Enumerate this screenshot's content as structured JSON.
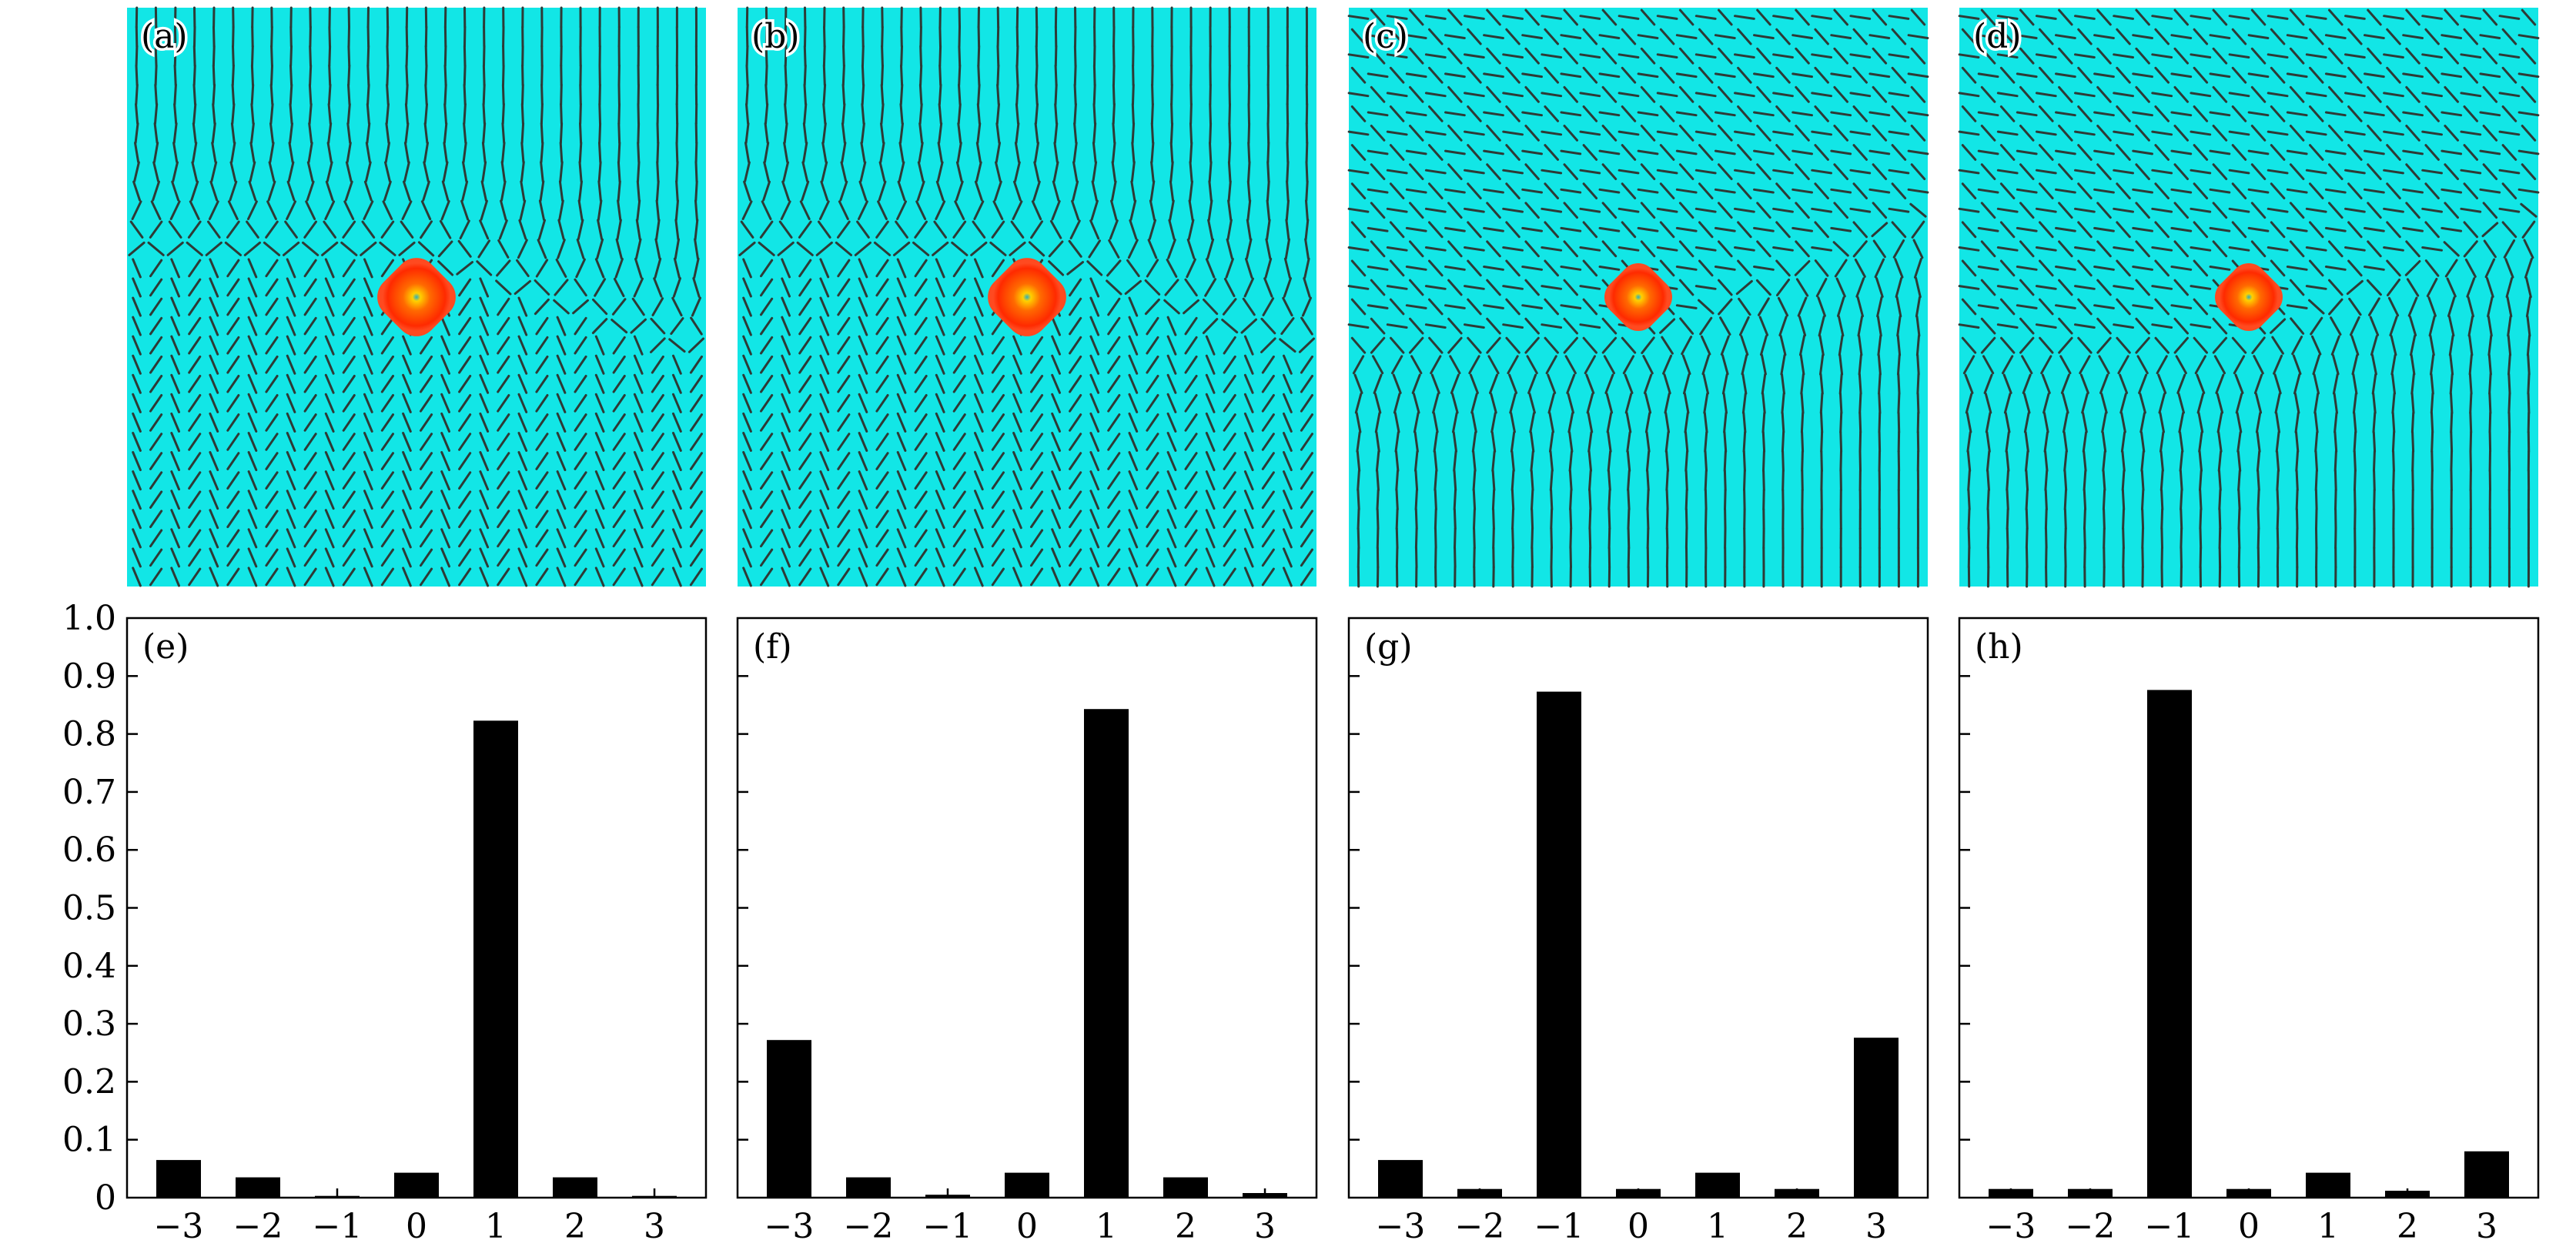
{
  "spin_panels": [
    {
      "label": "(a)"
    },
    {
      "label": "(b)"
    },
    {
      "label": "(c)"
    },
    {
      "label": "(d)"
    }
  ],
  "colors": {
    "background": "#12e6e6",
    "arrow": "#2e3a36",
    "skyrmion_outer": "#ff2a00",
    "skyrmion_mid": "#ff6a00",
    "skyrmion_core": "#ffd000",
    "skyrmion_center": "#2ab0c0",
    "bar": "#000000"
  },
  "chart_data": [
    {
      "type": "bar",
      "label": "(e)",
      "categories": [
        "−3",
        "−2",
        "−1",
        "0",
        "1",
        "2",
        "3"
      ],
      "values": [
        0.065,
        0.035,
        0.003,
        0.043,
        0.823,
        0.035,
        0.003
      ],
      "ylim": [
        0,
        1.0
      ],
      "yticks": [
        "0",
        "0.1",
        "0.2",
        "0.3",
        "0.4",
        "0.5",
        "0.6",
        "0.7",
        "0.8",
        "0.9",
        "1.0"
      ]
    },
    {
      "type": "bar",
      "label": "(f)",
      "categories": [
        "−3",
        "−2",
        "−1",
        "0",
        "1",
        "2",
        "3"
      ],
      "values": [
        0.272,
        0.035,
        0.005,
        0.043,
        0.843,
        0.035,
        0.008
      ],
      "ylim": [
        0,
        1.0
      ]
    },
    {
      "type": "bar",
      "label": "(g)",
      "categories": [
        "−3",
        "−2",
        "−1",
        "0",
        "1",
        "2",
        "3"
      ],
      "values": [
        0.065,
        0.015,
        0.873,
        0.015,
        0.043,
        0.015,
        0.276
      ],
      "ylim": [
        0,
        1.0
      ]
    },
    {
      "type": "bar",
      "label": "(h)",
      "categories": [
        "−3",
        "−2",
        "−1",
        "0",
        "1",
        "2",
        "3"
      ],
      "values": [
        0.015,
        0.015,
        0.876,
        0.015,
        0.043,
        0.012,
        0.08
      ],
      "ylim": [
        0,
        1.0
      ]
    }
  ]
}
